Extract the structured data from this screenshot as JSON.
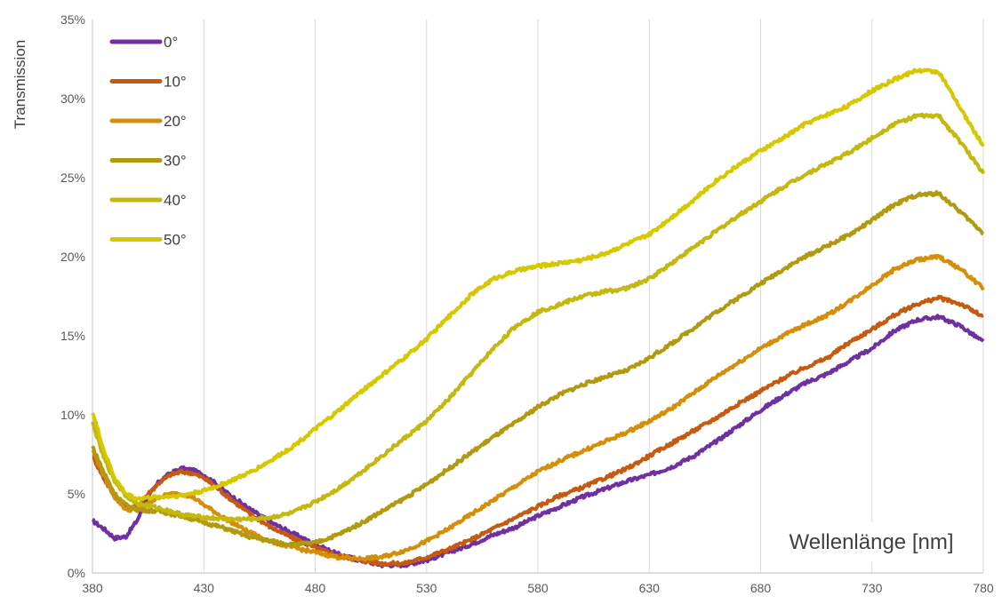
{
  "chart_data": {
    "type": "line",
    "ylabel": "Transmission",
    "xlabel": "Wellenlänge [nm]",
    "xlim": [
      380,
      780
    ],
    "ylim": [
      0,
      35
    ],
    "x_ticks": [
      "380",
      "430",
      "480",
      "530",
      "580",
      "630",
      "680",
      "730",
      "780"
    ],
    "y_ticks": [
      "0%",
      "5%",
      "10%",
      "15%",
      "20%",
      "25%",
      "30%",
      "35%"
    ],
    "grid": "vertical",
    "legend_position": "top-left",
    "series": [
      {
        "name": "0°",
        "color": "#7030a0",
        "points": [
          [
            380,
            3.3
          ],
          [
            385,
            2.8
          ],
          [
            390,
            2.2
          ],
          [
            395,
            2.3
          ],
          [
            400,
            3.3
          ],
          [
            405,
            4.8
          ],
          [
            410,
            5.8
          ],
          [
            415,
            6.3
          ],
          [
            420,
            6.6
          ],
          [
            425,
            6.5
          ],
          [
            430,
            6.2
          ],
          [
            435,
            5.7
          ],
          [
            440,
            5.1
          ],
          [
            450,
            4.1
          ],
          [
            460,
            3.2
          ],
          [
            470,
            2.5
          ],
          [
            480,
            1.8
          ],
          [
            490,
            1.2
          ],
          [
            500,
            0.8
          ],
          [
            510,
            0.5
          ],
          [
            520,
            0.5
          ],
          [
            530,
            0.8
          ],
          [
            540,
            1.3
          ],
          [
            550,
            1.8
          ],
          [
            560,
            2.4
          ],
          [
            570,
            2.9
          ],
          [
            580,
            3.6
          ],
          [
            590,
            4.2
          ],
          [
            600,
            4.8
          ],
          [
            610,
            5.3
          ],
          [
            620,
            5.8
          ],
          [
            630,
            6.2
          ],
          [
            640,
            6.7
          ],
          [
            650,
            7.4
          ],
          [
            660,
            8.3
          ],
          [
            670,
            9.3
          ],
          [
            680,
            10.3
          ],
          [
            690,
            11.2
          ],
          [
            700,
            12.0
          ],
          [
            710,
            12.6
          ],
          [
            720,
            13.4
          ],
          [
            730,
            14.2
          ],
          [
            740,
            15.3
          ],
          [
            750,
            16.0
          ],
          [
            760,
            16.2
          ],
          [
            770,
            15.6
          ],
          [
            780,
            14.6
          ]
        ]
      },
      {
        "name": "10°",
        "color": "#c55a11",
        "points": [
          [
            380,
            7.4
          ],
          [
            385,
            6.0
          ],
          [
            390,
            4.8
          ],
          [
            395,
            4.1
          ],
          [
            400,
            4.2
          ],
          [
            405,
            5.0
          ],
          [
            410,
            5.7
          ],
          [
            415,
            6.2
          ],
          [
            420,
            6.4
          ],
          [
            425,
            6.3
          ],
          [
            430,
            6.0
          ],
          [
            435,
            5.5
          ],
          [
            440,
            4.9
          ],
          [
            450,
            3.8
          ],
          [
            460,
            2.9
          ],
          [
            470,
            2.2
          ],
          [
            480,
            1.6
          ],
          [
            490,
            1.1
          ],
          [
            500,
            0.8
          ],
          [
            510,
            0.6
          ],
          [
            520,
            0.6
          ],
          [
            530,
            1.0
          ],
          [
            540,
            1.5
          ],
          [
            550,
            2.1
          ],
          [
            560,
            2.8
          ],
          [
            570,
            3.5
          ],
          [
            580,
            4.2
          ],
          [
            590,
            4.9
          ],
          [
            600,
            5.4
          ],
          [
            610,
            6.0
          ],
          [
            620,
            6.6
          ],
          [
            630,
            7.4
          ],
          [
            640,
            8.2
          ],
          [
            650,
            9.0
          ],
          [
            660,
            9.8
          ],
          [
            670,
            10.7
          ],
          [
            680,
            11.5
          ],
          [
            690,
            12.3
          ],
          [
            700,
            13.0
          ],
          [
            710,
            13.6
          ],
          [
            720,
            14.6
          ],
          [
            730,
            15.4
          ],
          [
            740,
            16.3
          ],
          [
            750,
            17.0
          ],
          [
            760,
            17.4
          ],
          [
            770,
            17.0
          ],
          [
            780,
            16.2
          ]
        ]
      },
      {
        "name": "20°",
        "color": "#d48f0a",
        "points": [
          [
            380,
            7.8
          ],
          [
            385,
            6.2
          ],
          [
            390,
            4.8
          ],
          [
            395,
            4.0
          ],
          [
            400,
            4.0
          ],
          [
            405,
            4.4
          ],
          [
            410,
            4.8
          ],
          [
            415,
            5.0
          ],
          [
            420,
            5.0
          ],
          [
            425,
            4.8
          ],
          [
            430,
            4.3
          ],
          [
            440,
            3.4
          ],
          [
            450,
            2.6
          ],
          [
            460,
            2.0
          ],
          [
            470,
            1.6
          ],
          [
            480,
            1.3
          ],
          [
            490,
            1.0
          ],
          [
            500,
            0.9
          ],
          [
            510,
            1.0
          ],
          [
            520,
            1.4
          ],
          [
            530,
            2.0
          ],
          [
            540,
            2.8
          ],
          [
            550,
            3.7
          ],
          [
            560,
            4.6
          ],
          [
            570,
            5.5
          ],
          [
            580,
            6.4
          ],
          [
            590,
            7.1
          ],
          [
            600,
            7.7
          ],
          [
            610,
            8.3
          ],
          [
            620,
            8.9
          ],
          [
            630,
            9.6
          ],
          [
            640,
            10.4
          ],
          [
            650,
            11.4
          ],
          [
            660,
            12.4
          ],
          [
            670,
            13.3
          ],
          [
            680,
            14.2
          ],
          [
            690,
            15.0
          ],
          [
            700,
            15.7
          ],
          [
            710,
            16.3
          ],
          [
            720,
            17.2
          ],
          [
            730,
            18.2
          ],
          [
            740,
            19.2
          ],
          [
            750,
            19.8
          ],
          [
            760,
            20.0
          ],
          [
            770,
            19.2
          ],
          [
            780,
            18.0
          ]
        ]
      },
      {
        "name": "30°",
        "color": "#b29a10",
        "points": [
          [
            380,
            8.0
          ],
          [
            385,
            6.4
          ],
          [
            390,
            5.0
          ],
          [
            395,
            4.3
          ],
          [
            400,
            4.0
          ],
          [
            410,
            3.9
          ],
          [
            420,
            3.6
          ],
          [
            430,
            3.2
          ],
          [
            440,
            2.8
          ],
          [
            450,
            2.3
          ],
          [
            460,
            2.0
          ],
          [
            470,
            1.8
          ],
          [
            480,
            1.9
          ],
          [
            490,
            2.4
          ],
          [
            500,
            3.1
          ],
          [
            510,
            3.9
          ],
          [
            520,
            4.7
          ],
          [
            530,
            5.6
          ],
          [
            540,
            6.6
          ],
          [
            550,
            7.6
          ],
          [
            560,
            8.6
          ],
          [
            570,
            9.5
          ],
          [
            580,
            10.5
          ],
          [
            590,
            11.3
          ],
          [
            600,
            11.9
          ],
          [
            610,
            12.4
          ],
          [
            620,
            12.8
          ],
          [
            630,
            13.6
          ],
          [
            640,
            14.5
          ],
          [
            650,
            15.5
          ],
          [
            660,
            16.5
          ],
          [
            670,
            17.4
          ],
          [
            680,
            18.3
          ],
          [
            690,
            19.2
          ],
          [
            700,
            20.0
          ],
          [
            710,
            20.7
          ],
          [
            720,
            21.4
          ],
          [
            730,
            22.3
          ],
          [
            740,
            23.3
          ],
          [
            750,
            23.9
          ],
          [
            760,
            24.0
          ],
          [
            770,
            22.8
          ],
          [
            780,
            21.5
          ]
        ]
      },
      {
        "name": "40°",
        "color": "#c4b80e",
        "points": [
          [
            380,
            9.5
          ],
          [
            385,
            7.3
          ],
          [
            390,
            5.8
          ],
          [
            395,
            4.9
          ],
          [
            400,
            4.4
          ],
          [
            410,
            4.1
          ],
          [
            420,
            3.7
          ],
          [
            430,
            3.5
          ],
          [
            440,
            3.4
          ],
          [
            450,
            3.4
          ],
          [
            460,
            3.5
          ],
          [
            470,
            3.8
          ],
          [
            480,
            4.5
          ],
          [
            490,
            5.3
          ],
          [
            500,
            6.3
          ],
          [
            510,
            7.4
          ],
          [
            520,
            8.5
          ],
          [
            530,
            9.6
          ],
          [
            540,
            11.0
          ],
          [
            550,
            12.6
          ],
          [
            560,
            14.2
          ],
          [
            570,
            15.6
          ],
          [
            580,
            16.5
          ],
          [
            590,
            17.0
          ],
          [
            600,
            17.5
          ],
          [
            610,
            17.8
          ],
          [
            620,
            18.0
          ],
          [
            630,
            18.6
          ],
          [
            640,
            19.6
          ],
          [
            650,
            20.6
          ],
          [
            660,
            21.6
          ],
          [
            670,
            22.6
          ],
          [
            680,
            23.5
          ],
          [
            690,
            24.4
          ],
          [
            700,
            25.2
          ],
          [
            710,
            25.9
          ],
          [
            720,
            26.6
          ],
          [
            730,
            27.5
          ],
          [
            740,
            28.4
          ],
          [
            750,
            28.9
          ],
          [
            760,
            28.9
          ],
          [
            770,
            27.2
          ],
          [
            780,
            25.3
          ]
        ]
      },
      {
        "name": "50°",
        "color": "#d6c800",
        "points": [
          [
            380,
            10.2
          ],
          [
            385,
            7.8
          ],
          [
            390,
            6.0
          ],
          [
            395,
            5.0
          ],
          [
            400,
            4.7
          ],
          [
            410,
            4.8
          ],
          [
            420,
            4.9
          ],
          [
            430,
            5.2
          ],
          [
            440,
            5.7
          ],
          [
            450,
            6.3
          ],
          [
            460,
            7.1
          ],
          [
            470,
            8.0
          ],
          [
            480,
            9.1
          ],
          [
            490,
            10.2
          ],
          [
            500,
            11.4
          ],
          [
            510,
            12.5
          ],
          [
            520,
            13.6
          ],
          [
            530,
            14.8
          ],
          [
            540,
            16.2
          ],
          [
            550,
            17.6
          ],
          [
            560,
            18.6
          ],
          [
            570,
            19.1
          ],
          [
            580,
            19.4
          ],
          [
            590,
            19.6
          ],
          [
            600,
            19.8
          ],
          [
            610,
            20.2
          ],
          [
            620,
            20.8
          ],
          [
            630,
            21.4
          ],
          [
            640,
            22.5
          ],
          [
            650,
            23.6
          ],
          [
            660,
            24.8
          ],
          [
            670,
            25.8
          ],
          [
            680,
            26.7
          ],
          [
            690,
            27.5
          ],
          [
            700,
            28.4
          ],
          [
            710,
            29.0
          ],
          [
            720,
            29.6
          ],
          [
            730,
            30.5
          ],
          [
            740,
            31.2
          ],
          [
            750,
            31.8
          ],
          [
            760,
            31.7
          ],
          [
            770,
            29.3
          ],
          [
            780,
            27.0
          ]
        ]
      }
    ]
  }
}
